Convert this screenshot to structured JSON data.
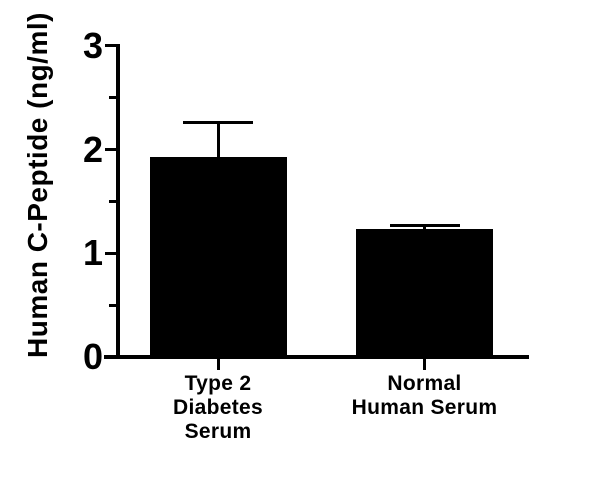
{
  "figure": {
    "background": "#ffffff",
    "ink_color": "#000000"
  },
  "chart_data": {
    "type": "bar",
    "title": "",
    "ylabel": "Human C-Peptide (ng/ml)",
    "xlabel": "",
    "categories": [
      "Type 2\nDiabetes\nSerum",
      "Normal\nHuman Serum"
    ],
    "values": [
      1.93,
      1.23
    ],
    "error_plus": [
      0.33,
      0.04
    ],
    "ylim": [
      0,
      3
    ],
    "yticks": [
      0,
      1,
      2,
      3
    ],
    "minor_yticks": [
      0.5,
      1.5,
      2.5
    ],
    "bar_color": "#000000",
    "grid": false,
    "legend": null
  }
}
